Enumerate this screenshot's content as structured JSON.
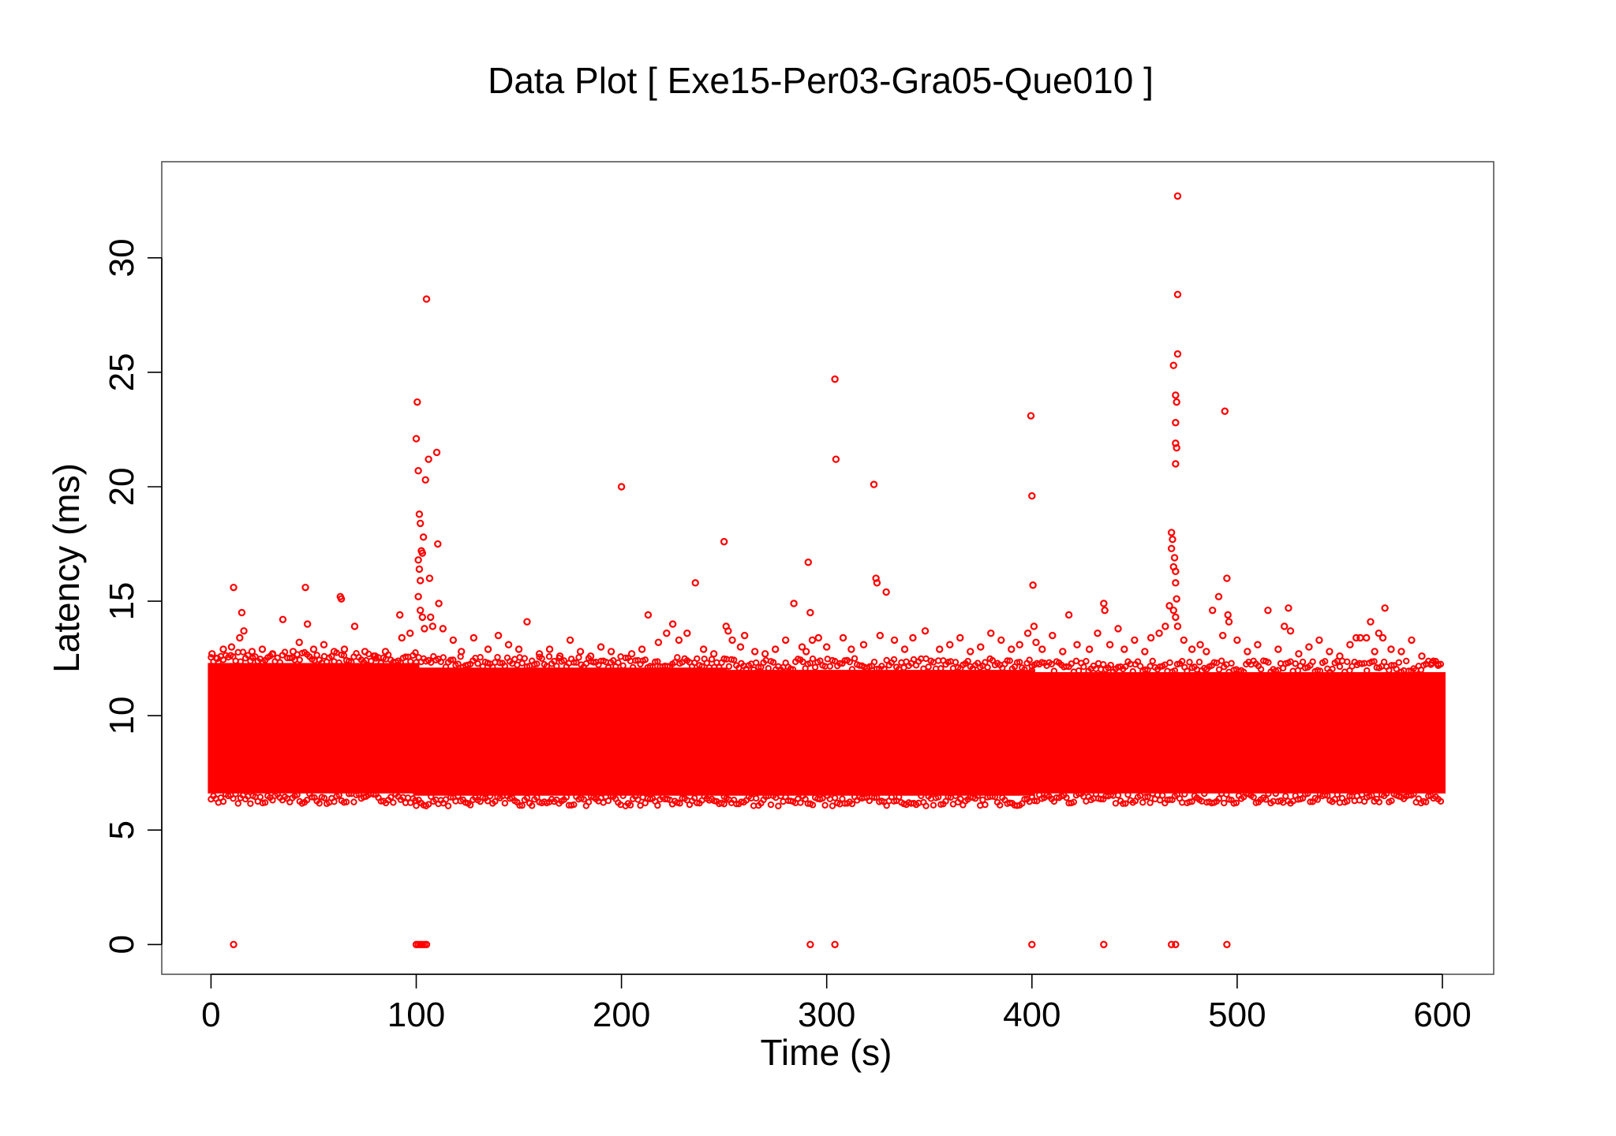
{
  "chart_data": {
    "type": "scatter",
    "title": "Data Plot [ Exe15-Per03-Gra05-Que010 ]",
    "xlabel": "Time (s)",
    "ylabel": "Latency (ms)",
    "xlim": [
      -24,
      625
    ],
    "ylim": [
      -1.3,
      34.2
    ],
    "x_ticks": [
      0,
      100,
      200,
      300,
      400,
      500,
      600
    ],
    "y_ticks": [
      0,
      5,
      10,
      15,
      20,
      25,
      30
    ],
    "grid": false,
    "legend": "none",
    "marker": "open-circle",
    "color": "#ff0000",
    "dense_band": {
      "segments": [
        {
          "x": [
            0,
            100
          ],
          "y_low": 6.6,
          "y_high": 12.3
        },
        {
          "x": [
            100,
            250
          ],
          "y_low": 6.5,
          "y_high": 12.1
        },
        {
          "x": [
            250,
            400
          ],
          "y_low": 6.5,
          "y_high": 12.0
        },
        {
          "x": [
            400,
            600
          ],
          "y_low": 6.6,
          "y_high": 11.9
        }
      ]
    },
    "series": [
      {
        "points": [
          [
            0.5,
            12.7
          ],
          [
            3,
            12.5
          ],
          [
            6,
            12.9
          ],
          [
            10,
            13.0
          ],
          [
            11,
            15.6
          ],
          [
            14,
            13.4
          ],
          [
            15,
            14.5
          ],
          [
            16,
            13.7
          ],
          [
            20,
            12.8
          ],
          [
            25,
            12.9
          ],
          [
            30,
            12.7
          ],
          [
            35,
            14.2
          ],
          [
            40,
            12.8
          ],
          [
            43,
            13.2
          ],
          [
            46,
            15.6
          ],
          [
            47,
            14.0
          ],
          [
            50,
            12.9
          ],
          [
            55,
            13.1
          ],
          [
            60,
            12.8
          ],
          [
            63,
            15.2
          ],
          [
            63.5,
            15.1
          ],
          [
            65,
            12.9
          ],
          [
            70,
            13.9
          ],
          [
            75,
            12.8
          ],
          [
            80,
            12.6
          ],
          [
            85,
            12.8
          ],
          [
            92,
            14.4
          ],
          [
            93,
            13.4
          ],
          [
            97,
            13.6
          ],
          [
            100,
            22.1
          ],
          [
            100.5,
            23.7
          ],
          [
            101,
            20.7
          ],
          [
            101.5,
            18.8
          ],
          [
            102,
            18.4
          ],
          [
            102.5,
            17.2
          ],
          [
            103,
            17.1
          ],
          [
            101,
            16.8
          ],
          [
            101.5,
            16.4
          ],
          [
            102,
            15.9
          ],
          [
            101,
            15.2
          ],
          [
            102,
            14.6
          ],
          [
            103,
            14.3
          ],
          [
            104,
            13.8
          ],
          [
            103.5,
            17.8
          ],
          [
            104.5,
            20.3
          ],
          [
            105,
            28.2
          ],
          [
            106,
            21.2
          ],
          [
            106.5,
            16.0
          ],
          [
            107,
            14.3
          ],
          [
            108,
            13.9
          ],
          [
            110,
            21.5
          ],
          [
            110.5,
            17.5
          ],
          [
            111,
            14.9
          ],
          [
            113,
            13.8
          ],
          [
            118,
            13.3
          ],
          [
            122,
            12.8
          ],
          [
            128,
            13.4
          ],
          [
            135,
            12.9
          ],
          [
            140,
            13.5
          ],
          [
            145,
            13.1
          ],
          [
            150,
            12.9
          ],
          [
            154,
            14.1
          ],
          [
            160,
            12.7
          ],
          [
            165,
            12.9
          ],
          [
            170,
            12.6
          ],
          [
            175,
            13.3
          ],
          [
            180,
            12.8
          ],
          [
            185,
            12.6
          ],
          [
            190,
            13.0
          ],
          [
            195,
            12.8
          ],
          [
            200,
            20.0
          ],
          [
            205,
            12.7
          ],
          [
            210,
            12.9
          ],
          [
            213,
            14.4
          ],
          [
            218,
            13.2
          ],
          [
            222,
            13.6
          ],
          [
            225,
            14.0
          ],
          [
            228,
            13.3
          ],
          [
            232,
            13.6
          ],
          [
            236,
            15.8
          ],
          [
            240,
            12.9
          ],
          [
            245,
            12.7
          ],
          [
            250,
            17.6
          ],
          [
            251,
            13.9
          ],
          [
            252,
            13.7
          ],
          [
            254,
            13.3
          ],
          [
            258,
            13.0
          ],
          [
            260,
            13.5
          ],
          [
            265,
            12.8
          ],
          [
            270,
            12.7
          ],
          [
            275,
            12.9
          ],
          [
            280,
            13.3
          ],
          [
            284,
            14.9
          ],
          [
            288,
            13.0
          ],
          [
            290,
            12.8
          ],
          [
            291,
            16.7
          ],
          [
            292,
            14.5
          ],
          [
            293,
            13.3
          ],
          [
            296,
            13.4
          ],
          [
            300,
            13.0
          ],
          [
            304,
            24.7
          ],
          [
            304.5,
            21.2
          ],
          [
            308,
            13.4
          ],
          [
            312,
            12.9
          ],
          [
            318,
            13.1
          ],
          [
            323,
            20.1
          ],
          [
            324,
            16.0
          ],
          [
            324.5,
            15.8
          ],
          [
            326,
            13.5
          ],
          [
            329,
            15.4
          ],
          [
            333,
            13.3
          ],
          [
            338,
            12.9
          ],
          [
            342,
            13.4
          ],
          [
            348,
            13.7
          ],
          [
            355,
            12.9
          ],
          [
            360,
            13.1
          ],
          [
            365,
            13.4
          ],
          [
            370,
            12.8
          ],
          [
            375,
            13.0
          ],
          [
            380,
            13.6
          ],
          [
            385,
            13.3
          ],
          [
            390,
            12.9
          ],
          [
            394,
            13.1
          ],
          [
            398,
            13.6
          ],
          [
            399.5,
            23.1
          ],
          [
            400,
            19.6
          ],
          [
            400.5,
            15.7
          ],
          [
            401,
            13.9
          ],
          [
            402,
            13.2
          ],
          [
            405,
            12.9
          ],
          [
            410,
            13.5
          ],
          [
            415,
            12.8
          ],
          [
            418,
            14.4
          ],
          [
            422,
            13.1
          ],
          [
            428,
            12.9
          ],
          [
            432,
            13.6
          ],
          [
            435,
            14.9
          ],
          [
            435.5,
            14.6
          ],
          [
            438,
            13.1
          ],
          [
            442,
            13.8
          ],
          [
            445,
            12.9
          ],
          [
            450,
            13.3
          ],
          [
            455,
            12.8
          ],
          [
            458,
            13.4
          ],
          [
            462,
            13.6
          ],
          [
            465,
            13.9
          ],
          [
            467,
            14.8
          ],
          [
            468,
            18.0
          ],
          [
            468.5,
            17.7
          ],
          [
            468,
            17.3
          ],
          [
            469,
            25.3
          ],
          [
            469.5,
            16.9
          ],
          [
            469,
            16.5
          ],
          [
            470,
            16.3
          ],
          [
            470,
            15.8
          ],
          [
            470.5,
            15.1
          ],
          [
            469,
            14.6
          ],
          [
            470,
            14.3
          ],
          [
            471,
            13.9
          ],
          [
            470,
            24.0
          ],
          [
            470.5,
            23.7
          ],
          [
            470,
            22.8
          ],
          [
            470,
            21.9
          ],
          [
            470.5,
            21.7
          ],
          [
            470,
            21.0
          ],
          [
            471,
            25.8
          ],
          [
            471,
            28.4
          ],
          [
            471,
            32.7
          ],
          [
            474,
            13.3
          ],
          [
            478,
            12.9
          ],
          [
            482,
            13.1
          ],
          [
            485,
            12.8
          ],
          [
            488,
            14.6
          ],
          [
            491,
            15.2
          ],
          [
            493,
            13.5
          ],
          [
            494,
            23.3
          ],
          [
            495,
            16.0
          ],
          [
            495.5,
            14.4
          ],
          [
            496,
            14.1
          ],
          [
            500,
            13.3
          ],
          [
            505,
            12.8
          ],
          [
            510,
            13.1
          ],
          [
            515,
            14.6
          ],
          [
            520,
            12.9
          ],
          [
            523,
            13.9
          ],
          [
            525,
            14.7
          ],
          [
            526,
            13.7
          ],
          [
            530,
            12.7
          ],
          [
            535,
            13.0
          ],
          [
            540,
            13.3
          ],
          [
            545,
            12.8
          ],
          [
            550,
            12.6
          ],
          [
            555,
            13.1
          ],
          [
            558,
            13.4
          ],
          [
            560,
            13.4
          ],
          [
            563,
            13.4
          ],
          [
            565,
            14.1
          ],
          [
            567,
            12.8
          ],
          [
            569,
            13.6
          ],
          [
            571,
            13.4
          ],
          [
            572,
            14.7
          ],
          [
            575,
            12.9
          ],
          [
            580,
            12.8
          ],
          [
            585,
            13.3
          ],
          [
            590,
            12.6
          ],
          [
            595,
            12.3
          ],
          [
            598,
            12.2
          ],
          [
            11,
            0
          ],
          [
            100,
            0
          ],
          [
            101,
            0
          ],
          [
            102,
            0
          ],
          [
            103,
            0
          ],
          [
            104,
            0
          ],
          [
            105,
            0
          ],
          [
            292,
            0
          ],
          [
            304,
            0
          ],
          [
            400,
            0
          ],
          [
            435,
            0
          ],
          [
            468,
            0
          ],
          [
            470,
            0
          ],
          [
            495,
            0
          ]
        ]
      }
    ]
  }
}
